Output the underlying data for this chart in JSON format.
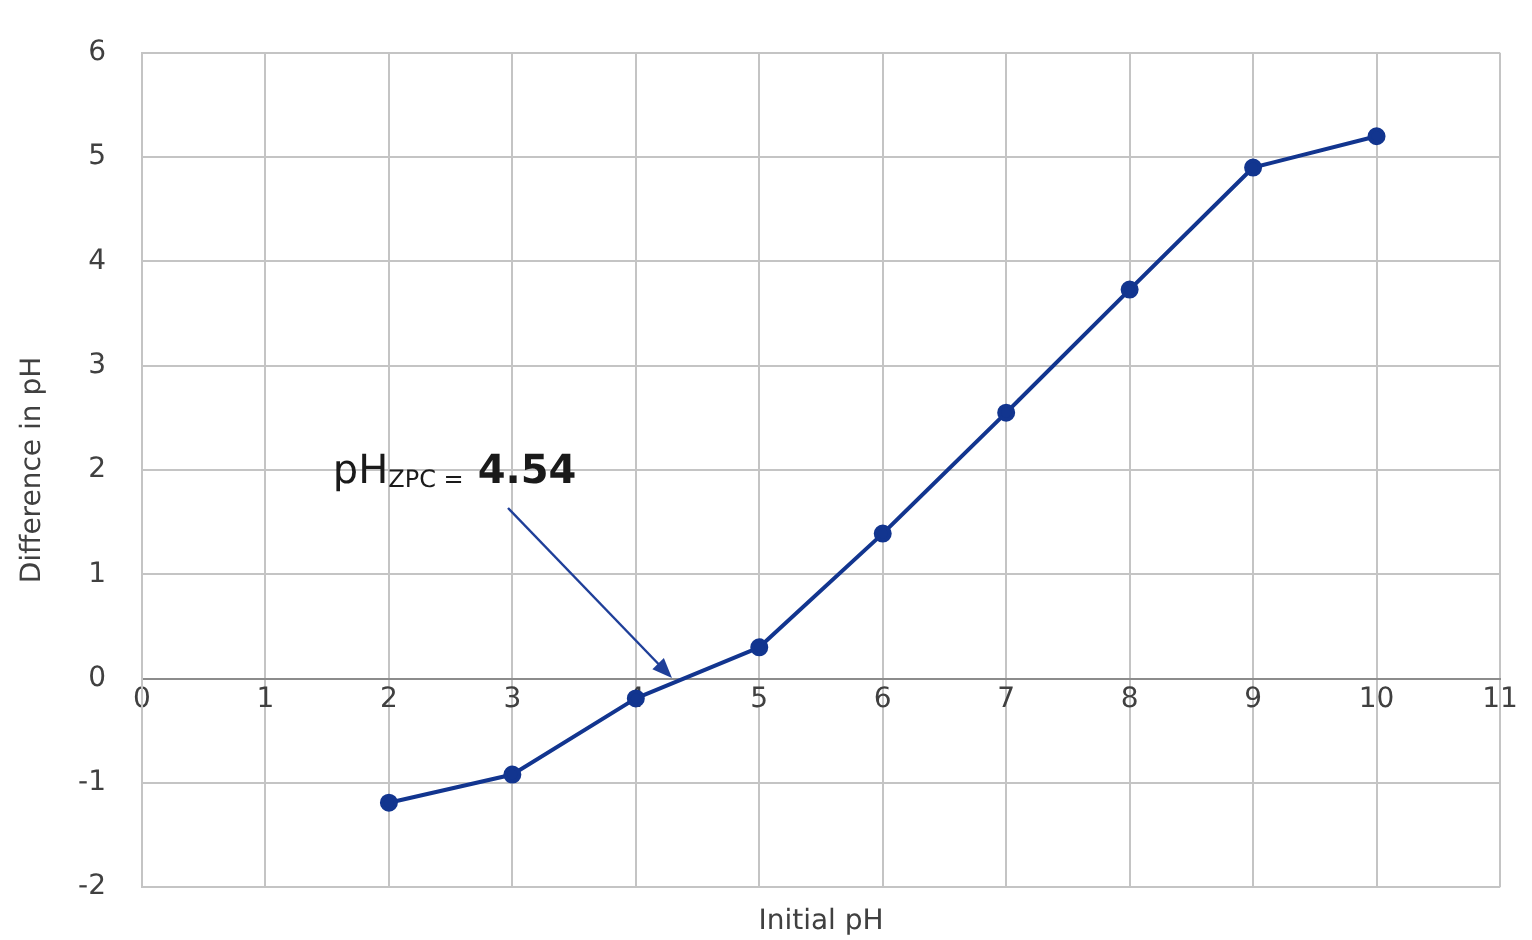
{
  "chart_data": {
    "type": "line",
    "xlabel": "Initial pH",
    "ylabel": "Difference in pH",
    "x": [
      2,
      3,
      4,
      5,
      6,
      7,
      8,
      9,
      10
    ],
    "series": [
      {
        "color": "#12358f",
        "values": [
          -1.19,
          -0.92,
          -0.19,
          0.3,
          1.39,
          2.55,
          3.73,
          4.9,
          5.2
        ]
      }
    ],
    "xlim": [
      0,
      11
    ],
    "xticks": [
      0,
      1,
      2,
      3,
      4,
      5,
      6,
      7,
      8,
      9,
      10,
      11
    ],
    "ylim": [
      -2,
      6
    ],
    "yticks": [
      -2,
      -1,
      0,
      1,
      2,
      3,
      4,
      5,
      6
    ],
    "grid": true,
    "marker": "circle",
    "line_style": "solid",
    "legend": false,
    "annotations": [
      {
        "text": "pH$_{ZPC =}$ 4.54",
        "x": 4.3,
        "y": 0
      }
    ]
  }
}
